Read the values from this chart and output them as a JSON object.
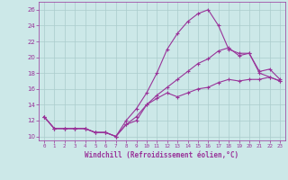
{
  "title": "",
  "xlabel": "Windchill (Refroidissement éolien,°C)",
  "ylabel": "",
  "bg_color": "#cce8e8",
  "line_color": "#993399",
  "grid_color": "#aacccc",
  "xlim": [
    -0.5,
    23.5
  ],
  "ylim": [
    9.5,
    27.0
  ],
  "yticks": [
    10,
    12,
    14,
    16,
    18,
    20,
    22,
    24,
    26
  ],
  "xticks": [
    0,
    1,
    2,
    3,
    4,
    5,
    6,
    7,
    8,
    9,
    10,
    11,
    12,
    13,
    14,
    15,
    16,
    17,
    18,
    19,
    20,
    21,
    22,
    23
  ],
  "line1_x": [
    0,
    1,
    2,
    3,
    4,
    5,
    6,
    7,
    8,
    9,
    10,
    11,
    12,
    13,
    14,
    15,
    16,
    17,
    18,
    19,
    20,
    21,
    22,
    23
  ],
  "line1_y": [
    12.5,
    11.0,
    11.0,
    11.0,
    11.0,
    10.5,
    10.5,
    10.0,
    11.5,
    12.0,
    14.0,
    14.8,
    15.5,
    15.0,
    15.5,
    16.0,
    16.2,
    16.8,
    17.2,
    17.0,
    17.2,
    17.2,
    17.5,
    17.0
  ],
  "line2_x": [
    0,
    1,
    2,
    3,
    4,
    5,
    6,
    7,
    8,
    9,
    10,
    11,
    12,
    13,
    14,
    15,
    16,
    17,
    18,
    19,
    20,
    21,
    22,
    23
  ],
  "line2_y": [
    12.5,
    11.0,
    11.0,
    11.0,
    11.0,
    10.5,
    10.5,
    10.0,
    12.0,
    13.5,
    15.5,
    18.0,
    21.0,
    23.0,
    24.5,
    25.5,
    26.0,
    24.0,
    21.0,
    20.5,
    20.5,
    18.0,
    17.5,
    17.0
  ],
  "line3_x": [
    0,
    1,
    2,
    3,
    4,
    5,
    6,
    7,
    8,
    9,
    10,
    11,
    12,
    13,
    14,
    15,
    16,
    17,
    18,
    19,
    20,
    21,
    22,
    23
  ],
  "line3_y": [
    12.5,
    11.0,
    11.0,
    11.0,
    11.0,
    10.5,
    10.5,
    10.0,
    11.5,
    12.5,
    14.0,
    15.2,
    16.2,
    17.2,
    18.2,
    19.2,
    19.8,
    20.8,
    21.2,
    20.2,
    20.5,
    18.2,
    18.5,
    17.2
  ]
}
